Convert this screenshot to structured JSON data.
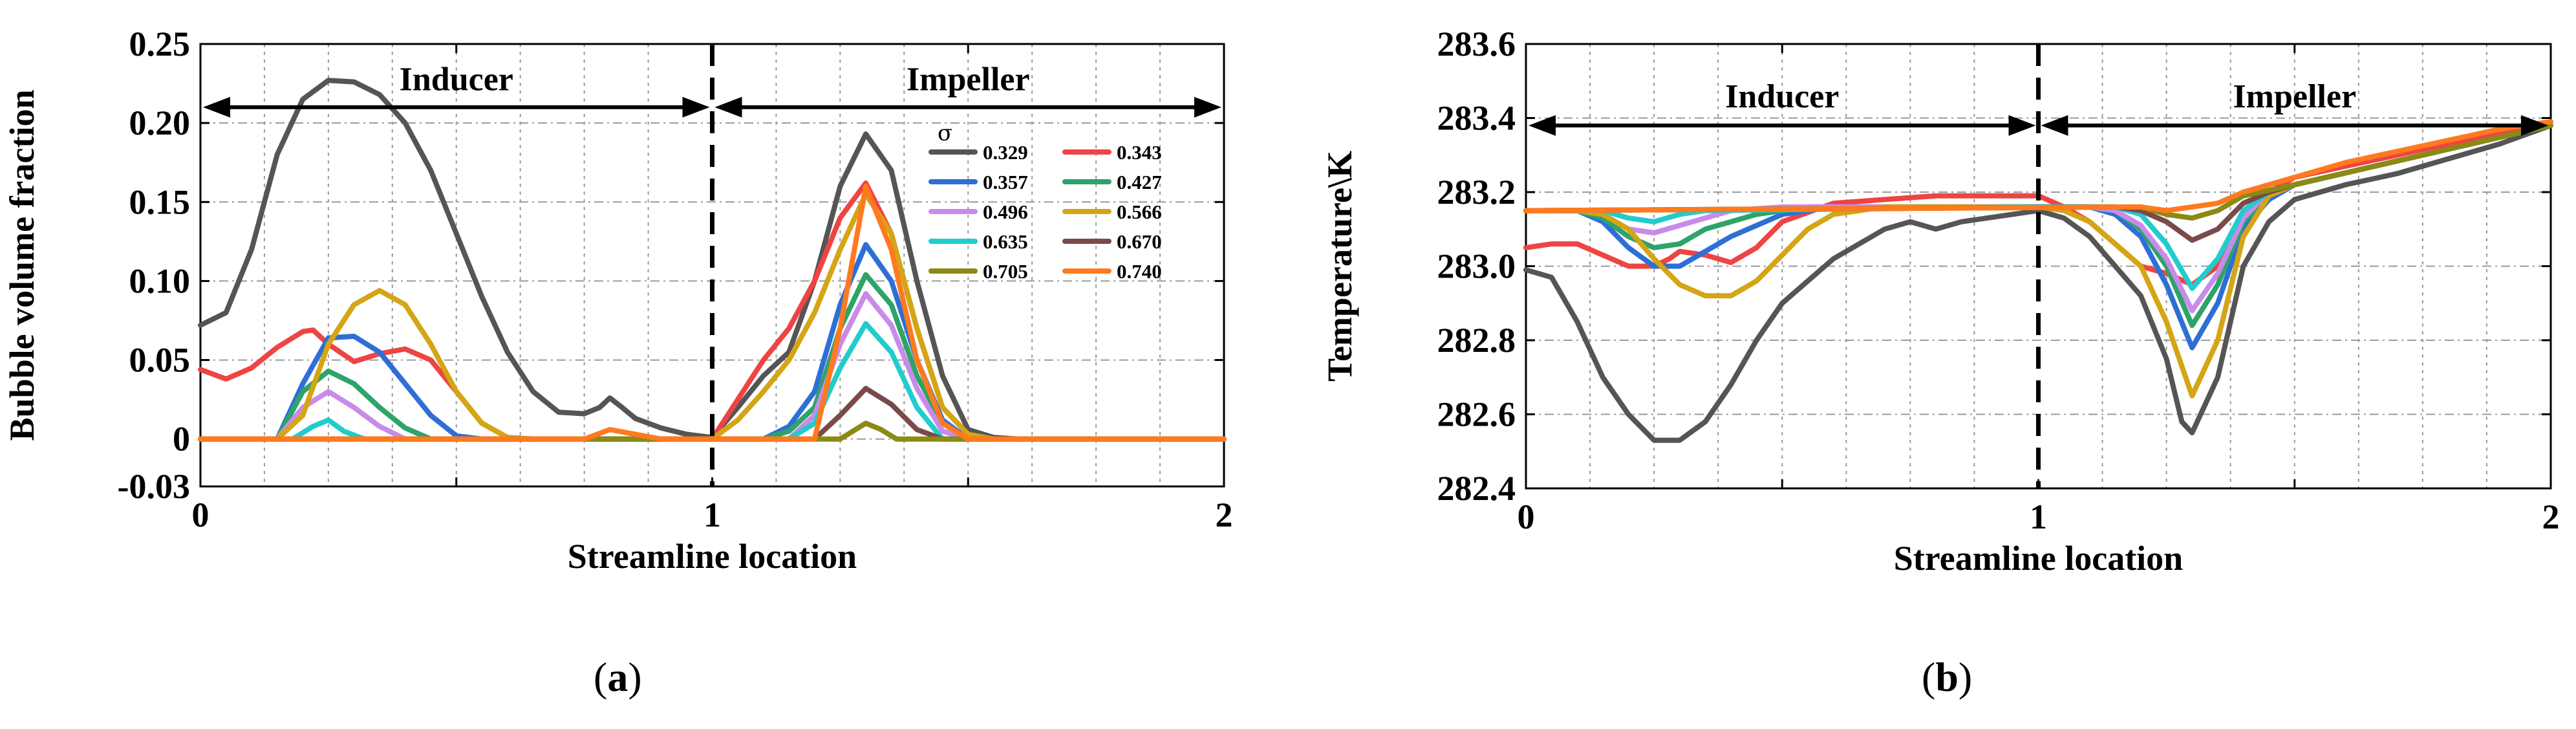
{
  "chart_data": [
    {
      "type": "line",
      "caption": "a",
      "xlabel": "Streamline location",
      "ylabel": "Bubble volume fraction",
      "xlim": [
        0,
        2
      ],
      "ylim": [
        -0.03,
        0.25
      ],
      "x_ticks": [
        "0",
        "1",
        "2"
      ],
      "y_ticks": [
        {
          "v": -0.03,
          "label": "-0.03"
        },
        {
          "v": 0,
          "label": "0"
        },
        {
          "v": 0.05,
          "label": "0.05"
        },
        {
          "v": 0.1,
          "label": "0.10"
        },
        {
          "v": 0.15,
          "label": "0.15"
        },
        {
          "v": 0.2,
          "label": "0.20"
        },
        {
          "v": 0.25,
          "label": "0.25"
        }
      ],
      "grid": true,
      "regions": [
        {
          "label": "Inducer",
          "from": 0,
          "to": 1
        },
        {
          "label": "Impeller",
          "from": 1,
          "to": 2
        }
      ],
      "divider_x": 1,
      "region_arrow_y": 0.21,
      "region_label_y": 0.228,
      "legend_title": "σ",
      "legend_position": "top-right",
      "series": [
        {
          "name": "0.329",
          "color": "#555555",
          "x": [
            0,
            0.05,
            0.1,
            0.15,
            0.2,
            0.25,
            0.3,
            0.35,
            0.4,
            0.45,
            0.5,
            0.55,
            0.6,
            0.65,
            0.7,
            0.75,
            0.78,
            0.8,
            0.82,
            0.85,
            0.9,
            0.95,
            1.0,
            1.05,
            1.1,
            1.15,
            1.2,
            1.25,
            1.3,
            1.35,
            1.4,
            1.45,
            1.5,
            1.55,
            1.6,
            2.0
          ],
          "y": [
            0.072,
            0.08,
            0.12,
            0.18,
            0.215,
            0.227,
            0.226,
            0.218,
            0.2,
            0.17,
            0.13,
            0.09,
            0.055,
            0.03,
            0.017,
            0.016,
            0.02,
            0.026,
            0.021,
            0.013,
            0.007,
            0.003,
            0.001,
            0.02,
            0.04,
            0.055,
            0.1,
            0.16,
            0.193,
            0.17,
            0.1,
            0.04,
            0.006,
            0.001,
            0,
            0
          ]
        },
        {
          "name": "0.343",
          "color": "#ee4444",
          "x": [
            0,
            0.05,
            0.1,
            0.15,
            0.2,
            0.22,
            0.25,
            0.3,
            0.35,
            0.4,
            0.45,
            0.5,
            0.55,
            0.6,
            0.65,
            1.0,
            1.05,
            1.1,
            1.15,
            1.2,
            1.25,
            1.3,
            1.35,
            1.4,
            1.45,
            1.5,
            1.55,
            2.0
          ],
          "y": [
            0.044,
            0.038,
            0.045,
            0.058,
            0.068,
            0.069,
            0.06,
            0.049,
            0.054,
            0.057,
            0.05,
            0.03,
            0.01,
            0.001,
            0,
            0,
            0.025,
            0.05,
            0.07,
            0.1,
            0.14,
            0.162,
            0.13,
            0.07,
            0.02,
            0.003,
            0,
            0
          ]
        },
        {
          "name": "0.357",
          "color": "#2e6fd6",
          "x": [
            0,
            0.15,
            0.2,
            0.25,
            0.3,
            0.35,
            0.4,
            0.45,
            0.5,
            0.55,
            1.1,
            1.15,
            1.2,
            1.25,
            1.3,
            1.35,
            1.4,
            1.45,
            1.5,
            2.0
          ],
          "y": [
            0,
            0,
            0.035,
            0.064,
            0.065,
            0.055,
            0.035,
            0.015,
            0.002,
            0,
            0,
            0.008,
            0.03,
            0.085,
            0.123,
            0.1,
            0.05,
            0.012,
            0,
            0
          ]
        },
        {
          "name": "0.427",
          "color": "#2ea36a",
          "x": [
            0,
            0.15,
            0.2,
            0.25,
            0.3,
            0.35,
            0.4,
            0.45,
            1.1,
            1.15,
            1.2,
            1.25,
            1.3,
            1.35,
            1.4,
            1.45,
            1.5,
            2.0
          ],
          "y": [
            0,
            0,
            0.03,
            0.043,
            0.035,
            0.02,
            0.007,
            0,
            0,
            0.005,
            0.02,
            0.07,
            0.104,
            0.085,
            0.04,
            0.01,
            0,
            0
          ]
        },
        {
          "name": "0.496",
          "color": "#c98bea",
          "x": [
            0,
            0.15,
            0.2,
            0.25,
            0.3,
            0.35,
            0.4,
            1.15,
            1.2,
            1.25,
            1.3,
            1.35,
            1.4,
            1.45,
            1.5,
            2.0
          ],
          "y": [
            0,
            0,
            0.02,
            0.03,
            0.02,
            0.008,
            0,
            0,
            0.015,
            0.06,
            0.092,
            0.072,
            0.032,
            0.005,
            0,
            0
          ]
        },
        {
          "name": "0.566",
          "color": "#d4a514",
          "x": [
            0,
            0.15,
            0.2,
            0.25,
            0.3,
            0.35,
            0.4,
            0.45,
            0.5,
            0.55,
            0.6,
            0.65,
            1.0,
            1.05,
            1.1,
            1.15,
            1.2,
            1.25,
            1.3,
            1.35,
            1.4,
            1.45,
            1.5,
            1.55,
            2.0
          ],
          "y": [
            0,
            0,
            0.015,
            0.06,
            0.085,
            0.094,
            0.085,
            0.06,
            0.03,
            0.01,
            0.001,
            0,
            0,
            0.012,
            0.03,
            0.05,
            0.08,
            0.12,
            0.155,
            0.13,
            0.07,
            0.02,
            0.003,
            0,
            0
          ]
        },
        {
          "name": "0.635",
          "color": "#22cccc",
          "x": [
            0,
            0.18,
            0.22,
            0.25,
            0.28,
            0.32,
            1.15,
            1.2,
            1.25,
            1.3,
            1.35,
            1.4,
            1.45,
            2.0
          ],
          "y": [
            0,
            0,
            0.008,
            0.012,
            0.005,
            0,
            0,
            0.01,
            0.045,
            0.073,
            0.055,
            0.02,
            0,
            0
          ]
        },
        {
          "name": "0.670",
          "color": "#7a4a4a",
          "x": [
            0,
            1.2,
            1.25,
            1.3,
            1.35,
            1.4,
            1.45,
            2.0
          ],
          "y": [
            0,
            0,
            0.015,
            0.032,
            0.022,
            0.006,
            0,
            0
          ]
        },
        {
          "name": "0.705",
          "color": "#8a8a14",
          "x": [
            0,
            1.25,
            1.28,
            1.3,
            1.33,
            1.36,
            2.0
          ],
          "y": [
            0,
            0,
            0.006,
            0.01,
            0.006,
            0,
            0
          ]
        },
        {
          "name": "0.740",
          "color": "#ff7a1f",
          "x": [
            0,
            0.75,
            0.8,
            0.85,
            0.9,
            1.2,
            1.25,
            1.3,
            1.35,
            1.4,
            1.45,
            1.5,
            2.0
          ],
          "y": [
            0,
            0,
            0.006,
            0.003,
            0,
            0,
            0.07,
            0.16,
            0.12,
            0.05,
            0.01,
            0,
            0
          ]
        }
      ]
    },
    {
      "type": "line",
      "caption": "b",
      "xlabel": "Streamline location",
      "ylabel": "Temperature\\K",
      "xlim": [
        0,
        2
      ],
      "ylim": [
        282.4,
        283.6
      ],
      "x_ticks": [
        "0",
        "1",
        "2"
      ],
      "y_ticks": [
        {
          "v": 282.4,
          "label": "282.4"
        },
        {
          "v": 282.6,
          "label": "282.6"
        },
        {
          "v": 282.8,
          "label": "282.8"
        },
        {
          "v": 283.0,
          "label": "283.0"
        },
        {
          "v": 283.2,
          "label": "283.2"
        },
        {
          "v": 283.4,
          "label": "283.4"
        },
        {
          "v": 283.6,
          "label": "283.6"
        }
      ],
      "grid": true,
      "regions": [
        {
          "label": "Inducer",
          "from": 0,
          "to": 1
        },
        {
          "label": "Impeller",
          "from": 1,
          "to": 2
        }
      ],
      "divider_x": 1,
      "region_arrow_y": 283.38,
      "region_label_y": 283.46,
      "series": [
        {
          "name": "0.329",
          "color": "#555555",
          "x": [
            0,
            0.05,
            0.1,
            0.15,
            0.2,
            0.25,
            0.3,
            0.35,
            0.4,
            0.45,
            0.5,
            0.6,
            0.7,
            0.75,
            0.8,
            0.85,
            0.9,
            1.0,
            1.05,
            1.1,
            1.15,
            1.2,
            1.25,
            1.28,
            1.3,
            1.35,
            1.4,
            1.45,
            1.5,
            1.6,
            1.7,
            1.8,
            1.9,
            2.0
          ],
          "y": [
            282.99,
            282.97,
            282.85,
            282.7,
            282.6,
            282.53,
            282.53,
            282.58,
            282.68,
            282.8,
            282.9,
            283.02,
            283.1,
            283.12,
            283.1,
            283.12,
            283.13,
            283.15,
            283.13,
            283.08,
            283.0,
            282.92,
            282.75,
            282.58,
            282.55,
            282.7,
            283.0,
            283.12,
            283.18,
            283.22,
            283.25,
            283.29,
            283.33,
            283.38
          ]
        },
        {
          "name": "0.343",
          "color": "#ee4444",
          "x": [
            0,
            0.05,
            0.1,
            0.15,
            0.2,
            0.25,
            0.28,
            0.3,
            0.35,
            0.4,
            0.45,
            0.5,
            0.6,
            0.8,
            1.0,
            1.05,
            1.1,
            1.15,
            1.2,
            1.25,
            1.3,
            1.35,
            1.4,
            1.45,
            1.5,
            1.6,
            1.7,
            1.8,
            1.9,
            2.0
          ],
          "y": [
            283.05,
            283.06,
            283.06,
            283.03,
            283.0,
            283.0,
            283.02,
            283.04,
            283.03,
            283.01,
            283.05,
            283.12,
            283.17,
            283.19,
            283.19,
            283.16,
            283.12,
            283.06,
            283.0,
            282.98,
            282.95,
            283.0,
            283.12,
            283.2,
            283.24,
            283.27,
            283.3,
            283.33,
            283.36,
            283.39
          ]
        },
        {
          "name": "0.357",
          "color": "#2e6fd6",
          "x": [
            0,
            0.1,
            0.15,
            0.2,
            0.25,
            0.3,
            0.35,
            0.4,
            0.5,
            0.6,
            1.0,
            1.1,
            1.15,
            1.2,
            1.25,
            1.3,
            1.35,
            1.4,
            1.45,
            1.5,
            2.0
          ],
          "y": [
            283.15,
            283.15,
            283.12,
            283.05,
            283.0,
            283.0,
            283.04,
            283.08,
            283.14,
            283.16,
            283.16,
            283.16,
            283.14,
            283.08,
            282.95,
            282.78,
            282.9,
            283.1,
            283.18,
            283.22,
            283.38
          ]
        },
        {
          "name": "0.427",
          "color": "#2ea36a",
          "x": [
            0,
            0.1,
            0.15,
            0.2,
            0.25,
            0.3,
            0.35,
            0.45,
            0.55,
            1.0,
            1.1,
            1.15,
            1.2,
            1.25,
            1.3,
            1.35,
            1.4,
            1.45,
            1.5,
            2.0
          ],
          "y": [
            283.15,
            283.15,
            283.13,
            283.08,
            283.05,
            283.06,
            283.1,
            283.14,
            283.16,
            283.16,
            283.16,
            283.15,
            283.1,
            283.0,
            282.84,
            282.95,
            283.12,
            283.19,
            283.22,
            283.38
          ]
        },
        {
          "name": "0.496",
          "color": "#c98bea",
          "x": [
            0,
            0.1,
            0.15,
            0.2,
            0.25,
            0.3,
            0.4,
            0.5,
            1.0,
            1.1,
            1.15,
            1.2,
            1.25,
            1.3,
            1.35,
            1.4,
            1.45,
            1.5,
            2.0
          ],
          "y": [
            283.15,
            283.15,
            283.14,
            283.1,
            283.09,
            283.11,
            283.15,
            283.16,
            283.16,
            283.16,
            283.15,
            283.11,
            283.02,
            282.88,
            282.98,
            283.13,
            283.2,
            283.22,
            283.38
          ]
        },
        {
          "name": "0.566",
          "color": "#d4a514",
          "x": [
            0,
            0.1,
            0.15,
            0.2,
            0.25,
            0.3,
            0.35,
            0.4,
            0.45,
            0.5,
            0.55,
            0.6,
            0.7,
            1.0,
            1.05,
            1.1,
            1.15,
            1.2,
            1.25,
            1.3,
            1.35,
            1.4,
            1.45,
            1.5,
            2.0
          ],
          "y": [
            283.15,
            283.15,
            283.14,
            283.1,
            283.02,
            282.95,
            282.92,
            282.92,
            282.96,
            283.03,
            283.1,
            283.14,
            283.16,
            283.16,
            283.15,
            283.12,
            283.06,
            283.0,
            282.85,
            282.65,
            282.8,
            283.08,
            283.19,
            283.22,
            283.38
          ]
        },
        {
          "name": "0.635",
          "color": "#22cccc",
          "x": [
            0,
            0.15,
            0.2,
            0.25,
            0.3,
            0.35,
            1.0,
            1.15,
            1.2,
            1.25,
            1.3,
            1.35,
            1.4,
            1.45,
            1.5,
            2.0
          ],
          "y": [
            283.15,
            283.15,
            283.13,
            283.12,
            283.14,
            283.15,
            283.16,
            283.16,
            283.14,
            283.06,
            282.94,
            283.02,
            283.15,
            283.2,
            283.22,
            283.38
          ]
        },
        {
          "name": "0.670",
          "color": "#7a4a4a",
          "x": [
            0,
            1.15,
            1.2,
            1.25,
            1.3,
            1.35,
            1.4,
            1.45,
            1.5,
            2.0
          ],
          "y": [
            283.15,
            283.16,
            283.15,
            283.12,
            283.07,
            283.1,
            283.17,
            283.2,
            283.22,
            283.38
          ]
        },
        {
          "name": "0.705",
          "color": "#8a8a14",
          "x": [
            0,
            1.2,
            1.25,
            1.3,
            1.35,
            1.4,
            1.5,
            2.0
          ],
          "y": [
            283.15,
            283.16,
            283.14,
            283.13,
            283.15,
            283.19,
            283.22,
            283.38
          ]
        },
        {
          "name": "0.740",
          "color": "#ff7a1f",
          "x": [
            0,
            1.2,
            1.25,
            1.3,
            1.35,
            1.4,
            1.5,
            1.6,
            1.7,
            1.8,
            1.9,
            2.0
          ],
          "y": [
            283.15,
            283.16,
            283.15,
            283.16,
            283.17,
            283.2,
            283.24,
            283.28,
            283.31,
            283.34,
            283.37,
            283.39
          ]
        }
      ]
    }
  ]
}
